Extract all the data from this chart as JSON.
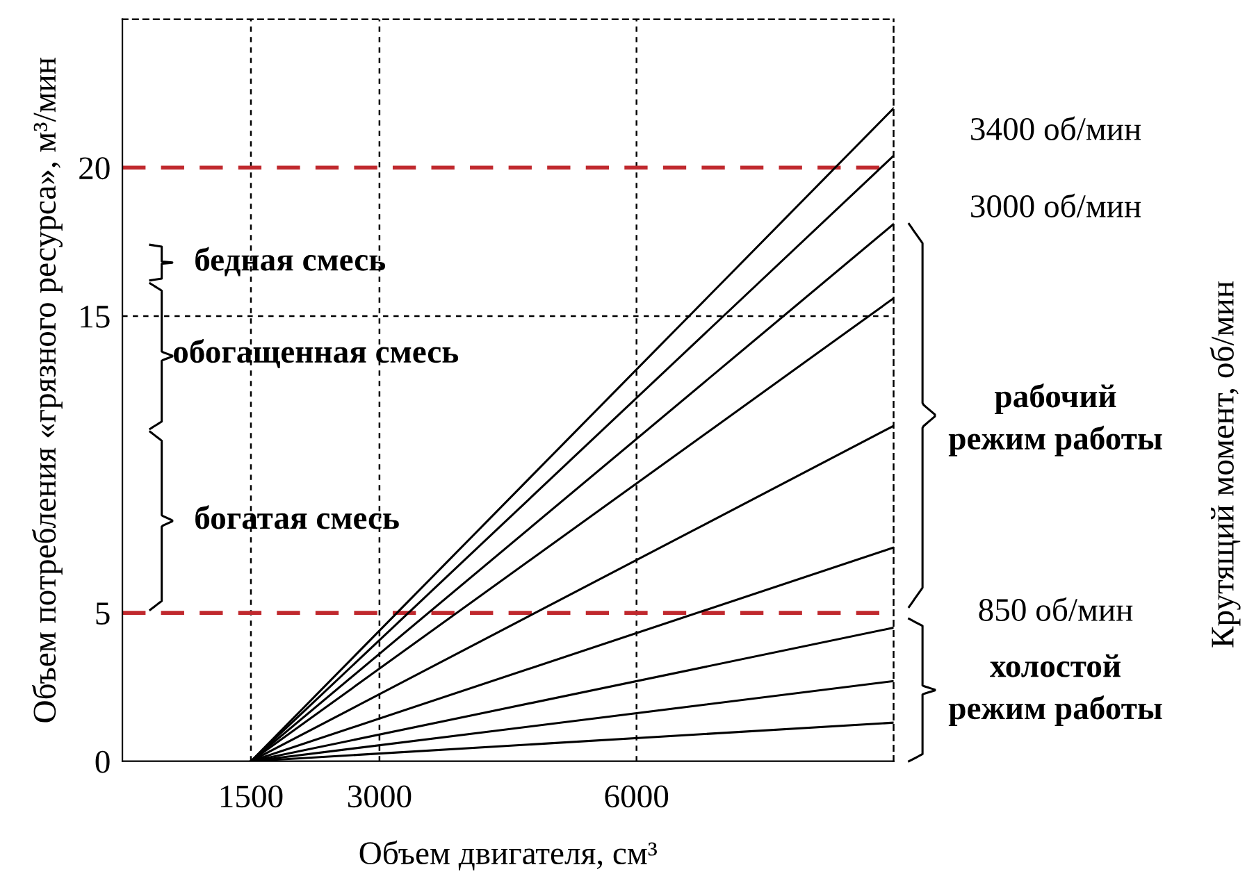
{
  "chart_data": {
    "type": "line",
    "xlabel": "Объем двигателя, см³",
    "ylabel": "Объем потребления «грязного ресурса», м³/мин",
    "xlim": [
      0,
      9000
    ],
    "xticks": [
      1500,
      3000,
      6000
    ],
    "ylim": [
      0,
      25
    ],
    "yticks": [
      0,
      5,
      15,
      20
    ],
    "grid": "x",
    "marker": "none",
    "line_style": "solid",
    "x": [
      1500,
      9000
    ],
    "series": [
      {
        "color": "#000000",
        "values": [
          0,
          22.0
        ]
      },
      {
        "color": "#000000",
        "values": [
          0,
          20.4
        ]
      },
      {
        "color": "#000000",
        "values": [
          0,
          18.1
        ]
      },
      {
        "color": "#000000",
        "values": [
          0,
          15.6
        ]
      },
      {
        "color": "#000000",
        "values": [
          0,
          11.3
        ]
      },
      {
        "color": "#000000",
        "values": [
          0,
          7.2
        ]
      },
      {
        "color": "#000000",
        "values": [
          0,
          4.5
        ]
      },
      {
        "color": "#000000",
        "values": [
          0,
          2.7
        ]
      },
      {
        "color": "#000000",
        "values": [
          0,
          1.3
        ]
      }
    ],
    "ref_lines": [
      {
        "axis": "y",
        "value": 20,
        "color": "#c0282d",
        "line_style": "dashed"
      },
      {
        "axis": "y",
        "value": 5,
        "color": "#c0282d",
        "line_style": "dashed"
      },
      {
        "axis": "y",
        "value": 15,
        "color": "#000000",
        "line_style": "dotted"
      }
    ],
    "annotations": [
      "3400 об/мин",
      "3000 об/мин",
      "рабочий\nрежим работы",
      "850 об/мин",
      "холостой\nрежим работы",
      "бедная смесь",
      "обогащенная смесь",
      "богатая смесь",
      "Крутящий момент, об/мин"
    ]
  }
}
